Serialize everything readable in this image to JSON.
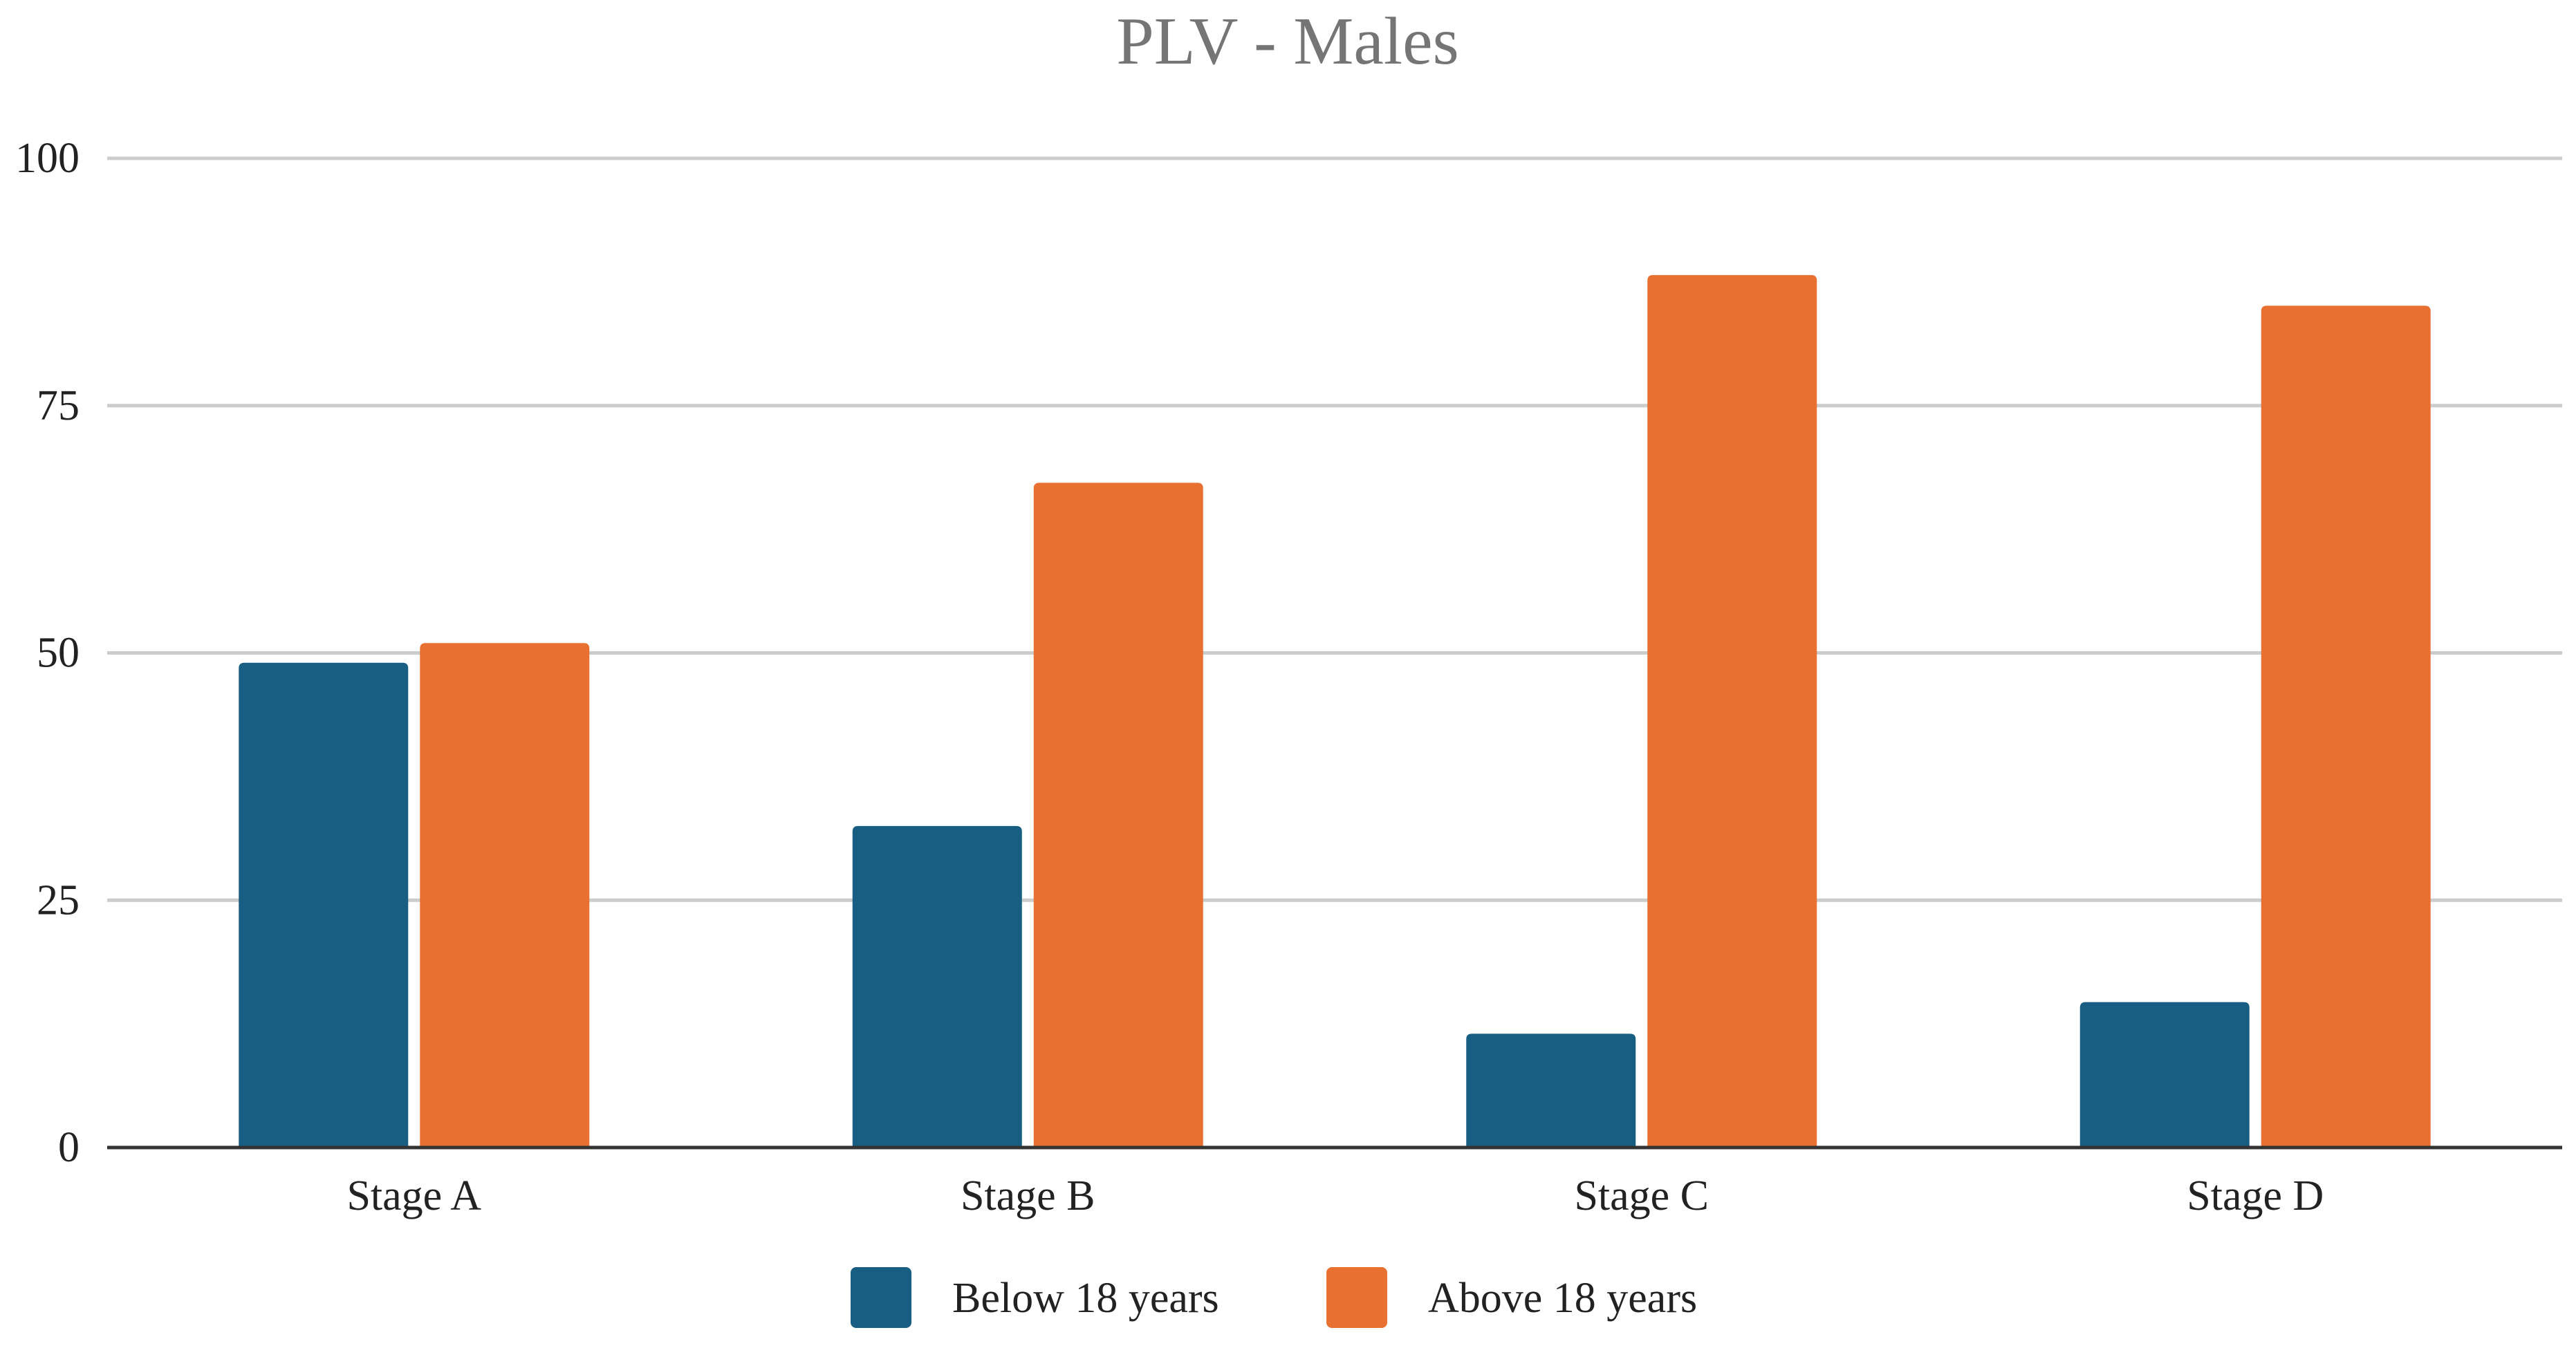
{
  "chart_data": {
    "type": "bar",
    "title": "PLV - Males",
    "xlabel": "",
    "ylabel": "",
    "categories": [
      "Stage A",
      "Stage B",
      "Stage C",
      "Stage D"
    ],
    "series": [
      {
        "name": "Below 18 years",
        "color": "#175E82",
        "values": [
          49,
          32.5,
          11.5,
          14.7
        ]
      },
      {
        "name": "Above 18 years",
        "color": "#E87132",
        "values": [
          51,
          67.2,
          88.2,
          85.1
        ]
      }
    ],
    "ylim": [
      0,
      100
    ],
    "yticks": [
      0,
      25,
      50,
      75,
      100
    ],
    "ytick_labels": [
      "0",
      "25",
      "50",
      "75",
      "100"
    ],
    "grid": true,
    "legend_position": "bottom-center",
    "colors": {
      "title": "#757575",
      "text": "#222222",
      "grid": "#cccccc",
      "axis": "#333333"
    }
  }
}
